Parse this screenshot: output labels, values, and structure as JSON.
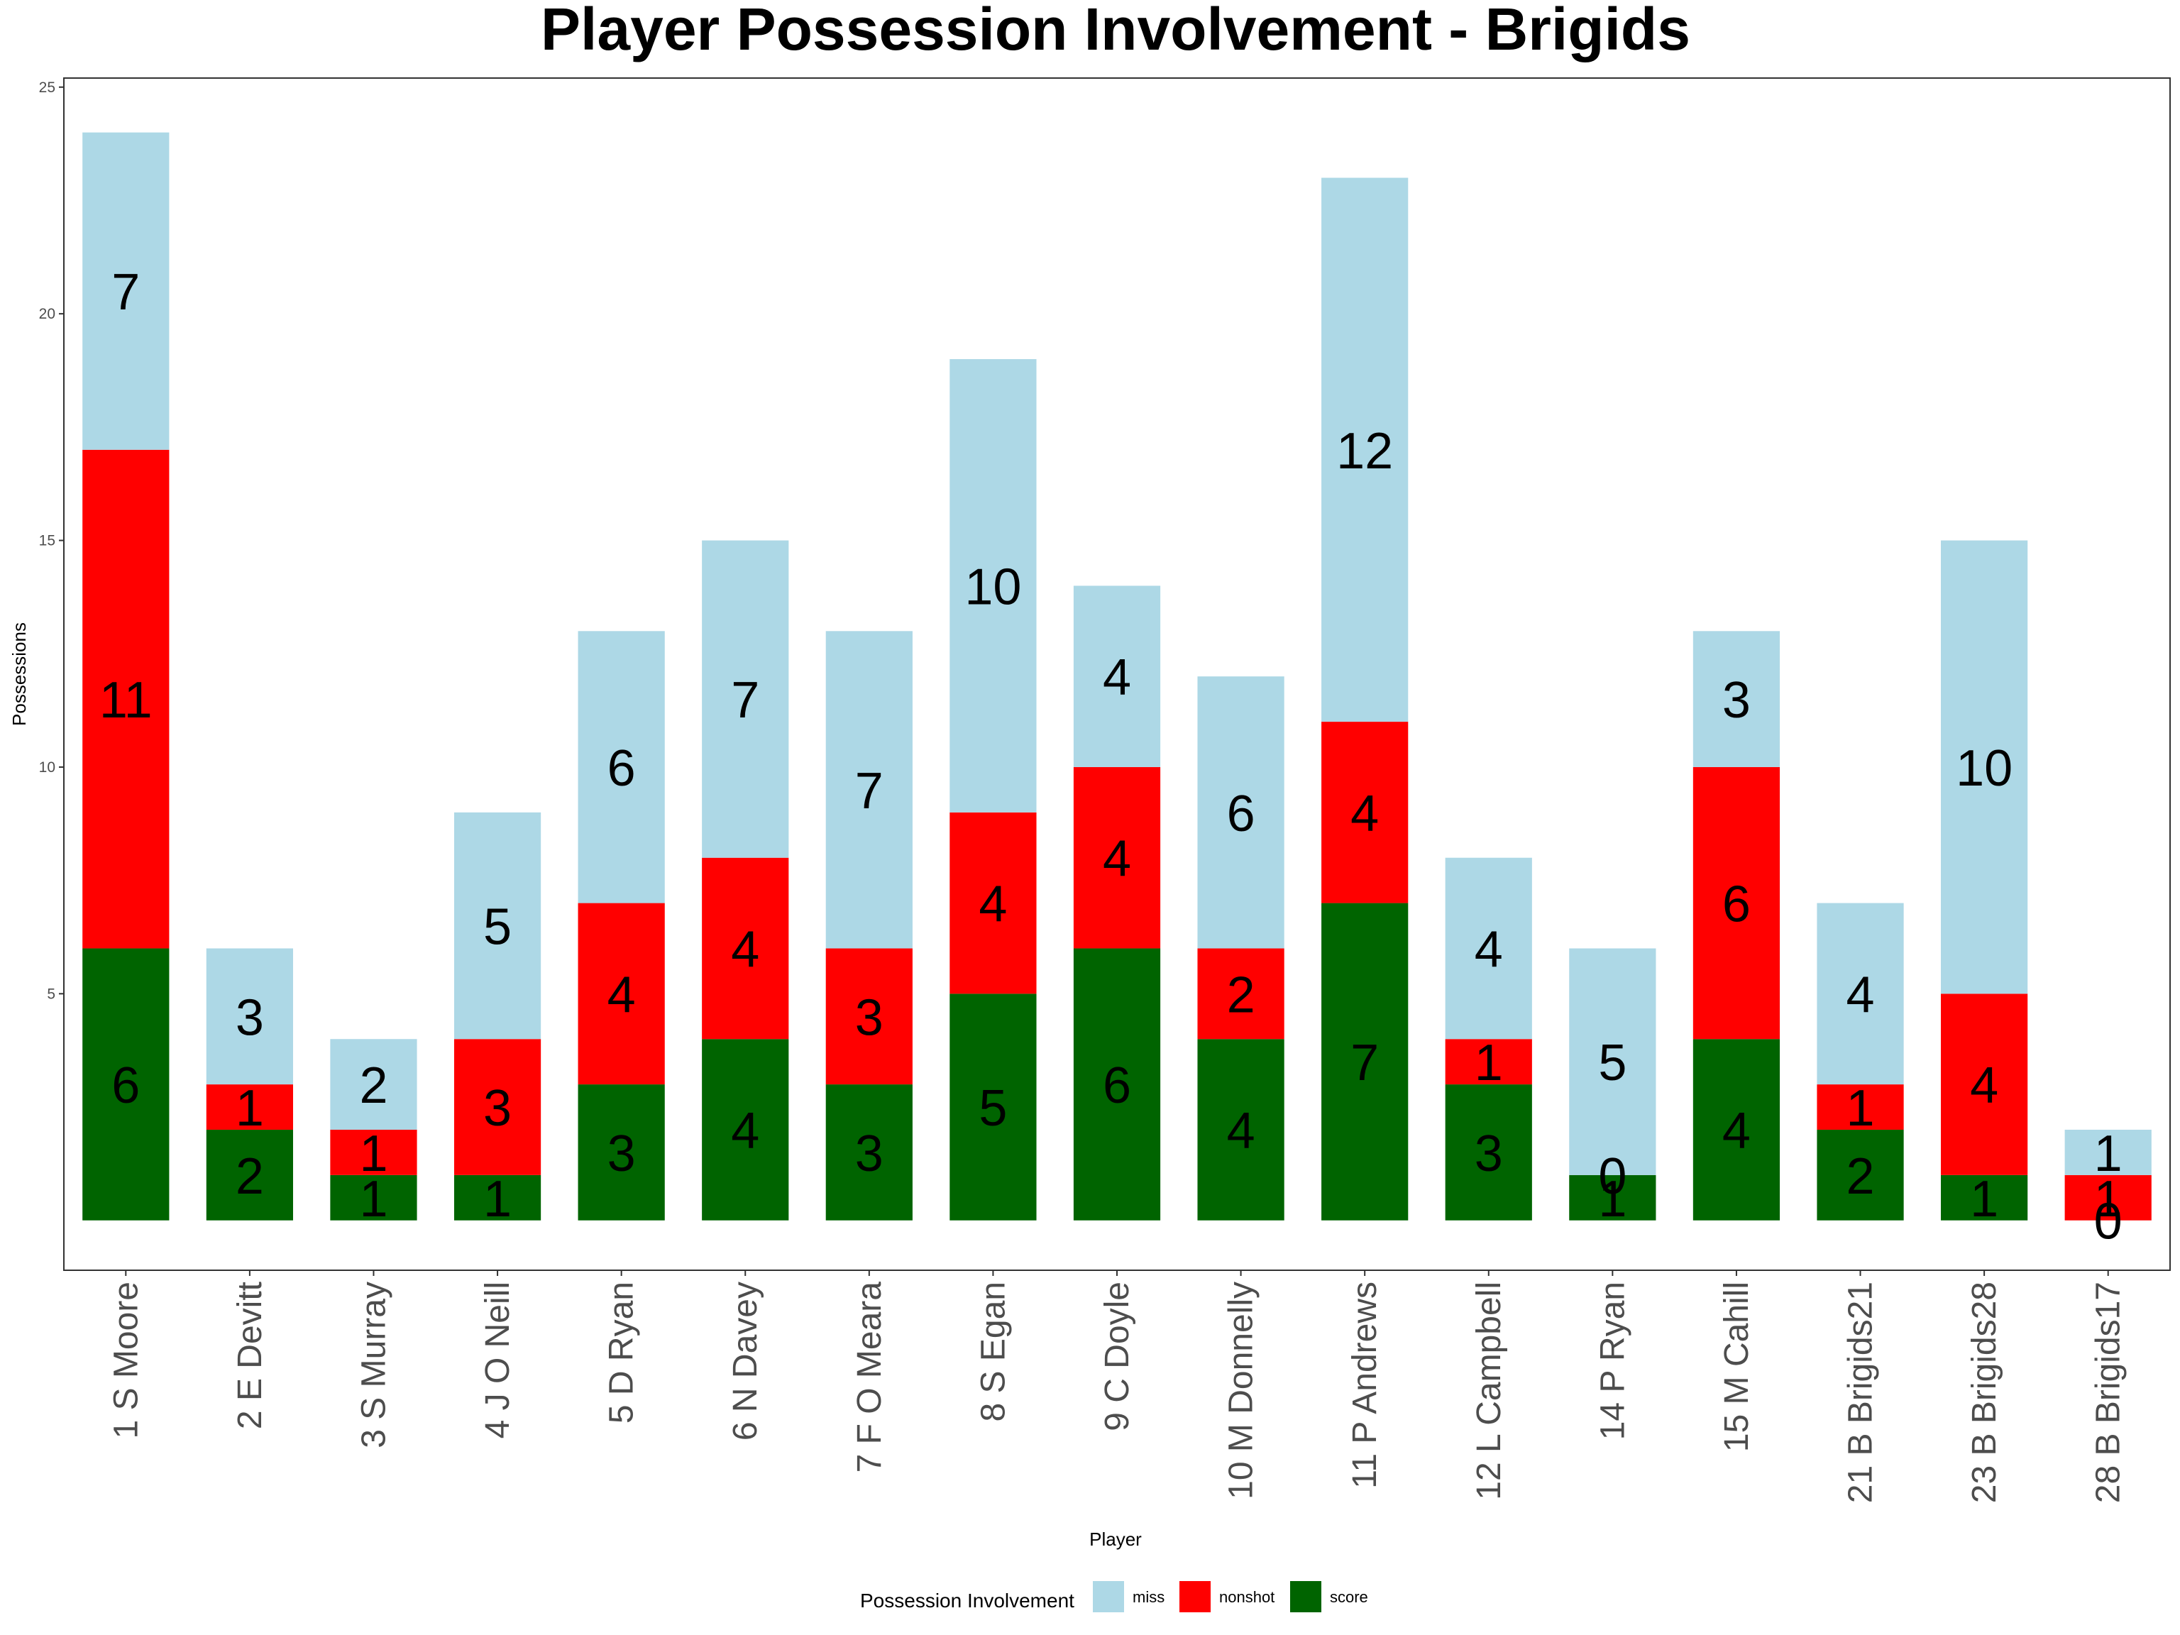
{
  "chart_data": {
    "type": "bar",
    "stacked": true,
    "title": "Player Possession Involvement - Brigids",
    "xlabel": "Player",
    "ylabel": "Possessions",
    "ylim": [
      -1.1,
      25.2
    ],
    "yticks": [
      5,
      10,
      15,
      20,
      25
    ],
    "grid": false,
    "legend_position": "bottom",
    "legend_title": "Possession Involvement",
    "categories": [
      "1 S Moore",
      "2 E Devitt",
      "3 S Murray",
      "4 J O Neill",
      "5 D Ryan",
      "6 N Davey",
      "7 F O Meara",
      "8 S Egan",
      "9 C Doyle",
      "10 M Donnelly",
      "11 P Andrews",
      "12 L Campbell",
      "14 P Ryan",
      "15 M Cahill",
      "21 B Brigids21",
      "23 B Brigids28",
      "28 B Brigids17"
    ],
    "series": [
      {
        "name": "score",
        "color": "#006400",
        "values": [
          6,
          2,
          1,
          1,
          3,
          4,
          3,
          5,
          6,
          4,
          7,
          3,
          1,
          4,
          2,
          1,
          0
        ]
      },
      {
        "name": "nonshot",
        "color": "#ff0000",
        "values": [
          11,
          1,
          1,
          3,
          4,
          4,
          3,
          4,
          4,
          2,
          4,
          1,
          0,
          6,
          1,
          4,
          1
        ]
      },
      {
        "name": "miss",
        "color": "#add8e6",
        "values": [
          7,
          3,
          2,
          5,
          6,
          7,
          7,
          10,
          4,
          6,
          12,
          4,
          5,
          3,
          4,
          10,
          1
        ]
      }
    ],
    "legend_order": [
      "miss",
      "nonshot",
      "score"
    ]
  }
}
